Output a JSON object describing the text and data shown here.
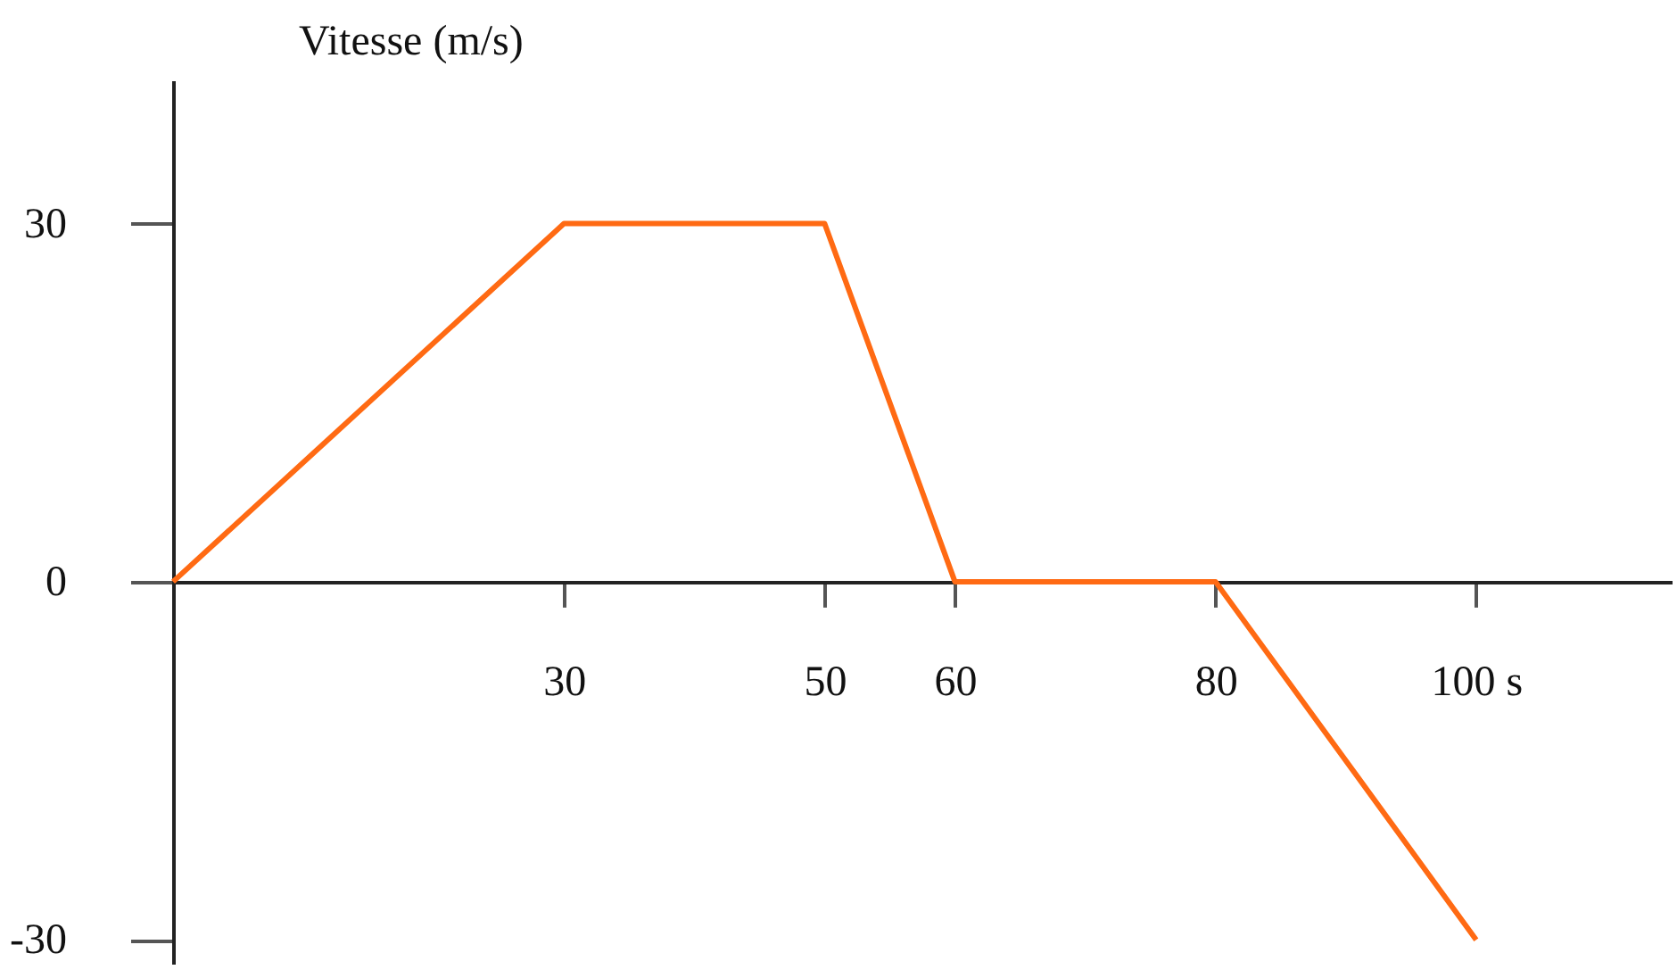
{
  "chart_data": {
    "type": "line",
    "ylabel": "Vitesse (m/s)",
    "x": [
      0,
      30,
      50,
      60,
      80,
      100
    ],
    "series": [
      {
        "color": "#ff6a13",
        "values": [
          0,
          30,
          30,
          0,
          0,
          -30
        ]
      }
    ],
    "xlim": [
      0,
      115
    ],
    "xticks": [
      30,
      50,
      60,
      80,
      {
        "value": 100,
        "label": "100 s"
      }
    ],
    "ylim": [
      -32,
      42
    ],
    "yticks": [
      -30,
      0,
      30
    ],
    "grid": false,
    "marker": "none",
    "line_style": "solid"
  }
}
